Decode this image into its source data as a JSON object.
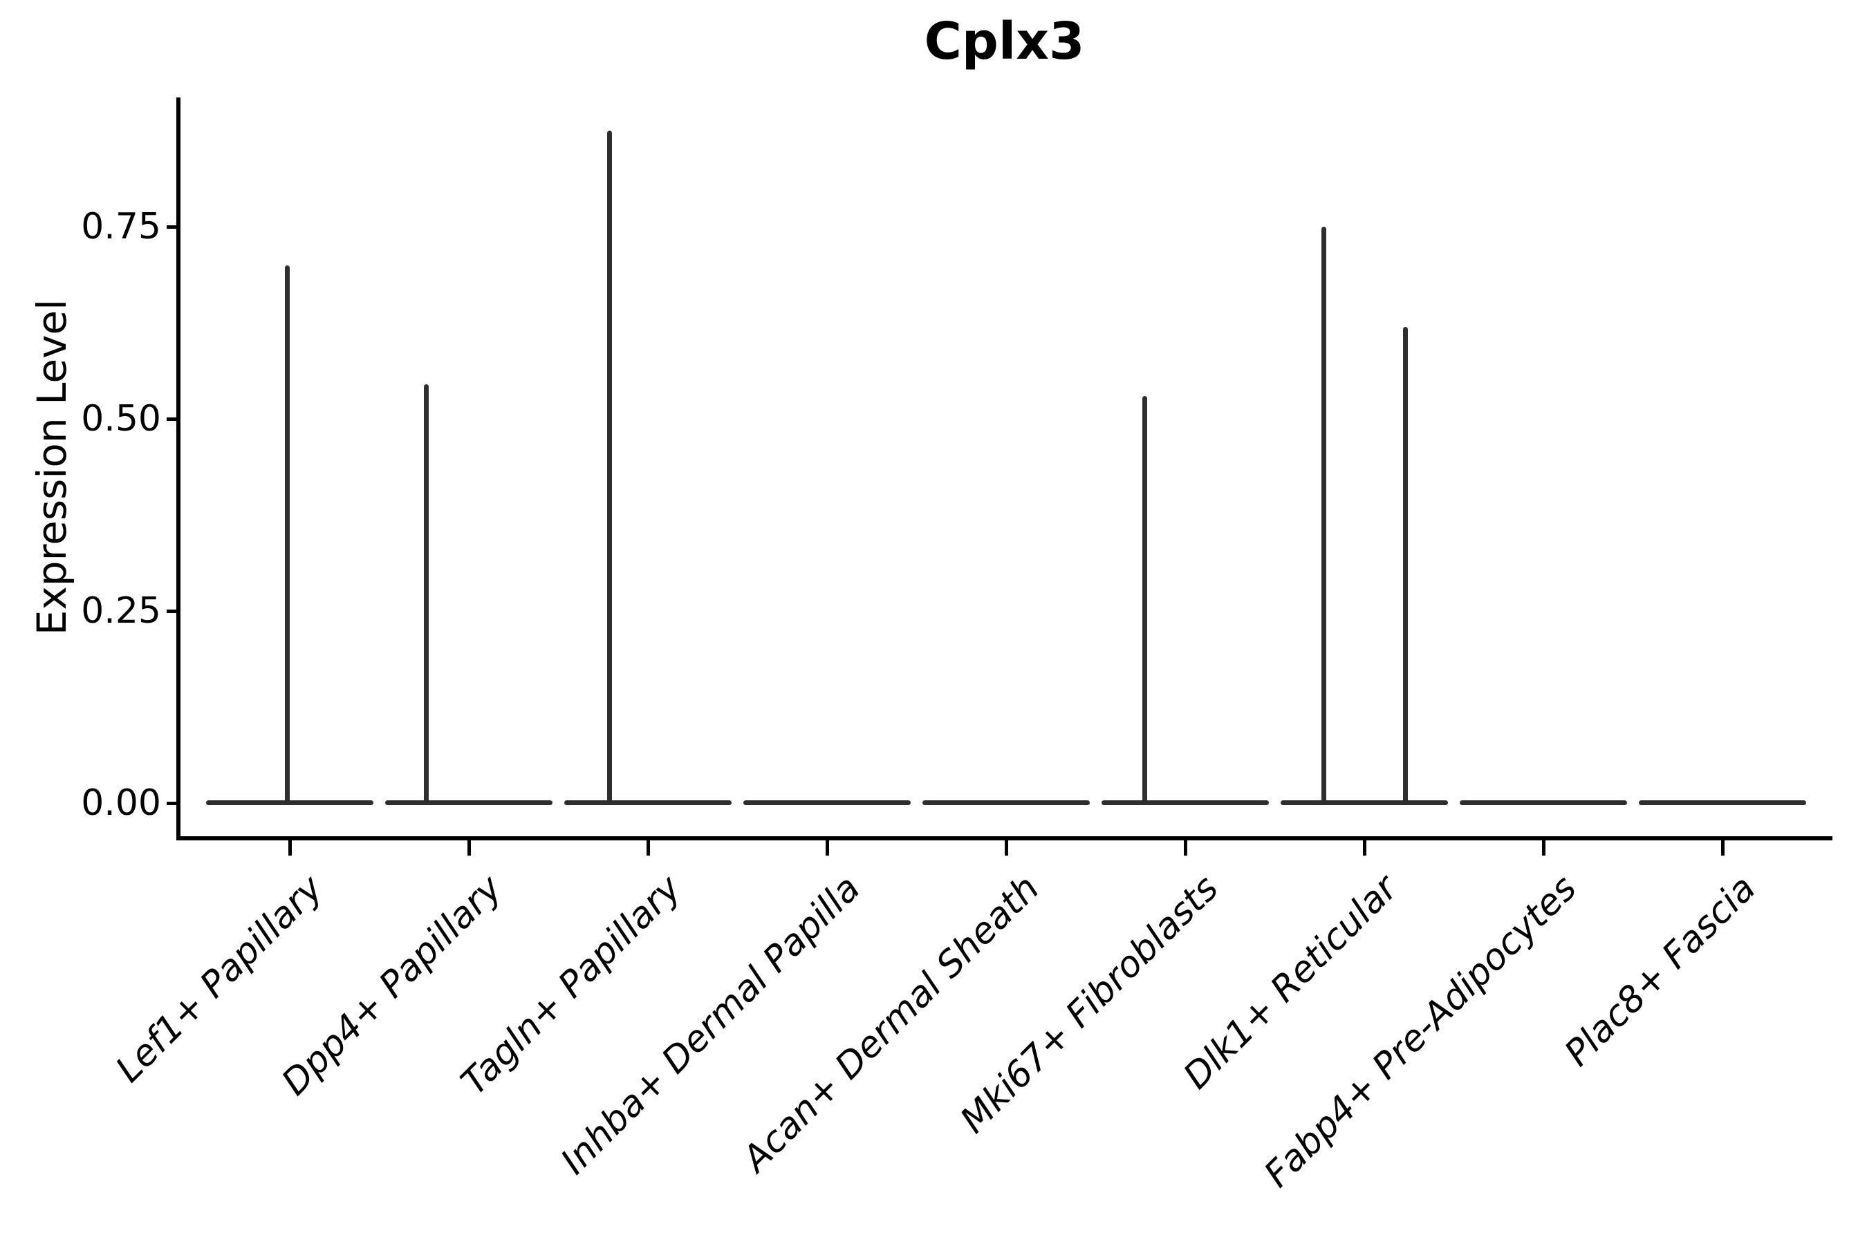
{
  "figure": {
    "title": "Cplx3"
  },
  "chart_data": {
    "type": "violin",
    "title": "Cplx3",
    "xlabel": "",
    "ylabel": "Expression Level",
    "y_ticks": [
      "0.00",
      "0.25",
      "0.50",
      "0.75"
    ],
    "y_tick_values": [
      0.0,
      0.25,
      0.5,
      0.75
    ],
    "ylim": [
      0,
      0.92
    ],
    "grid": false,
    "legend": "none",
    "categories": [
      "Lef1+ Papillary",
      "Dpp4+ Papillary",
      "Tagln+ Papillary",
      "Inhba+ Dermal Papilla",
      "Acan+ Dermal Sheath",
      "Mki67+ Fibroblasts",
      "Dlk1+ Reticular",
      "Fabp4+ Pre-Adipocytes",
      "Plac8+ Fascia"
    ],
    "violins": [
      {
        "category": "Lef1+ Papillary",
        "max_expression": 0.7,
        "spikes": [
          {
            "value": 0.7,
            "dx": -4
          }
        ]
      },
      {
        "category": "Dpp4+ Papillary",
        "max_expression": 0.55,
        "spikes": [
          {
            "value": 0.545,
            "dx": -62
          }
        ]
      },
      {
        "category": "Tagln+ Papillary",
        "max_expression": 0.88,
        "spikes": [
          {
            "value": 0.875,
            "dx": -56
          }
        ]
      },
      {
        "category": "Inhba+ Dermal Papilla",
        "max_expression": 0.0,
        "spikes": []
      },
      {
        "category": "Acan+ Dermal Sheath",
        "max_expression": 0.0,
        "spikes": []
      },
      {
        "category": "Mki67+ Fibroblasts",
        "max_expression": 0.53,
        "spikes": [
          {
            "value": 0.53,
            "dx": -59
          }
        ]
      },
      {
        "category": "Dlk1+ Reticular",
        "max_expression": 0.75,
        "spikes": [
          {
            "value": 0.75,
            "dx": -59
          },
          {
            "value": 0.62,
            "dx": 59
          }
        ]
      },
      {
        "category": "Fabp4+ Pre-Adipocytes",
        "max_expression": 0.0,
        "spikes": []
      },
      {
        "category": "Plac8+ Fascia",
        "max_expression": 0.0,
        "spikes": []
      }
    ],
    "style": {
      "violin_color": "#2e2e2e",
      "axis_color": "#000000",
      "text_color": "#000000",
      "background": "#ffffff"
    }
  }
}
